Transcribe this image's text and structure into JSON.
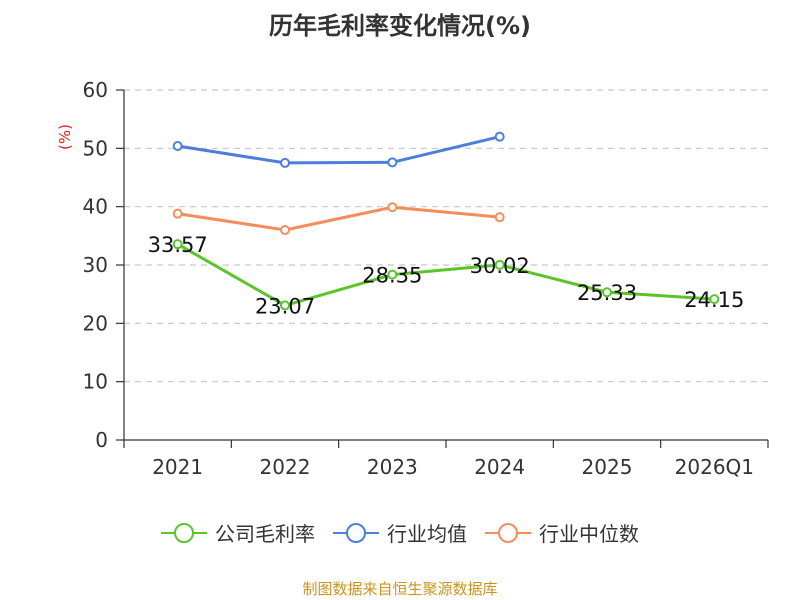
{
  "title": "历年毛利率变化情况(%)",
  "unit_label": "(%)",
  "source": "制图数据来自恒生聚源数据库",
  "chart_data": {
    "type": "line",
    "title": "历年毛利率变化情况(%)",
    "ylabel": "(%)",
    "categories": [
      "2021",
      "2022",
      "2023",
      "2024",
      "2025",
      "2026Q1"
    ],
    "ylim": [
      0,
      60
    ],
    "yticks": [
      0,
      10,
      20,
      30,
      40,
      50,
      60
    ],
    "grid": true,
    "legend_position": "bottom",
    "series": [
      {
        "name": "公司毛利率",
        "color": "#5ac42a",
        "values": [
          33.57,
          23.07,
          28.35,
          30.02,
          25.33,
          24.15
        ],
        "labels": true
      },
      {
        "name": "行业均值",
        "color": "#4c7fdc",
        "values": [
          50.4,
          47.5,
          47.6,
          52.0,
          null,
          null
        ],
        "labels": false
      },
      {
        "name": "行业中位数",
        "color": "#f58d5b",
        "values": [
          38.8,
          36.0,
          39.9,
          38.2,
          null,
          null
        ],
        "labels": false
      }
    ]
  }
}
